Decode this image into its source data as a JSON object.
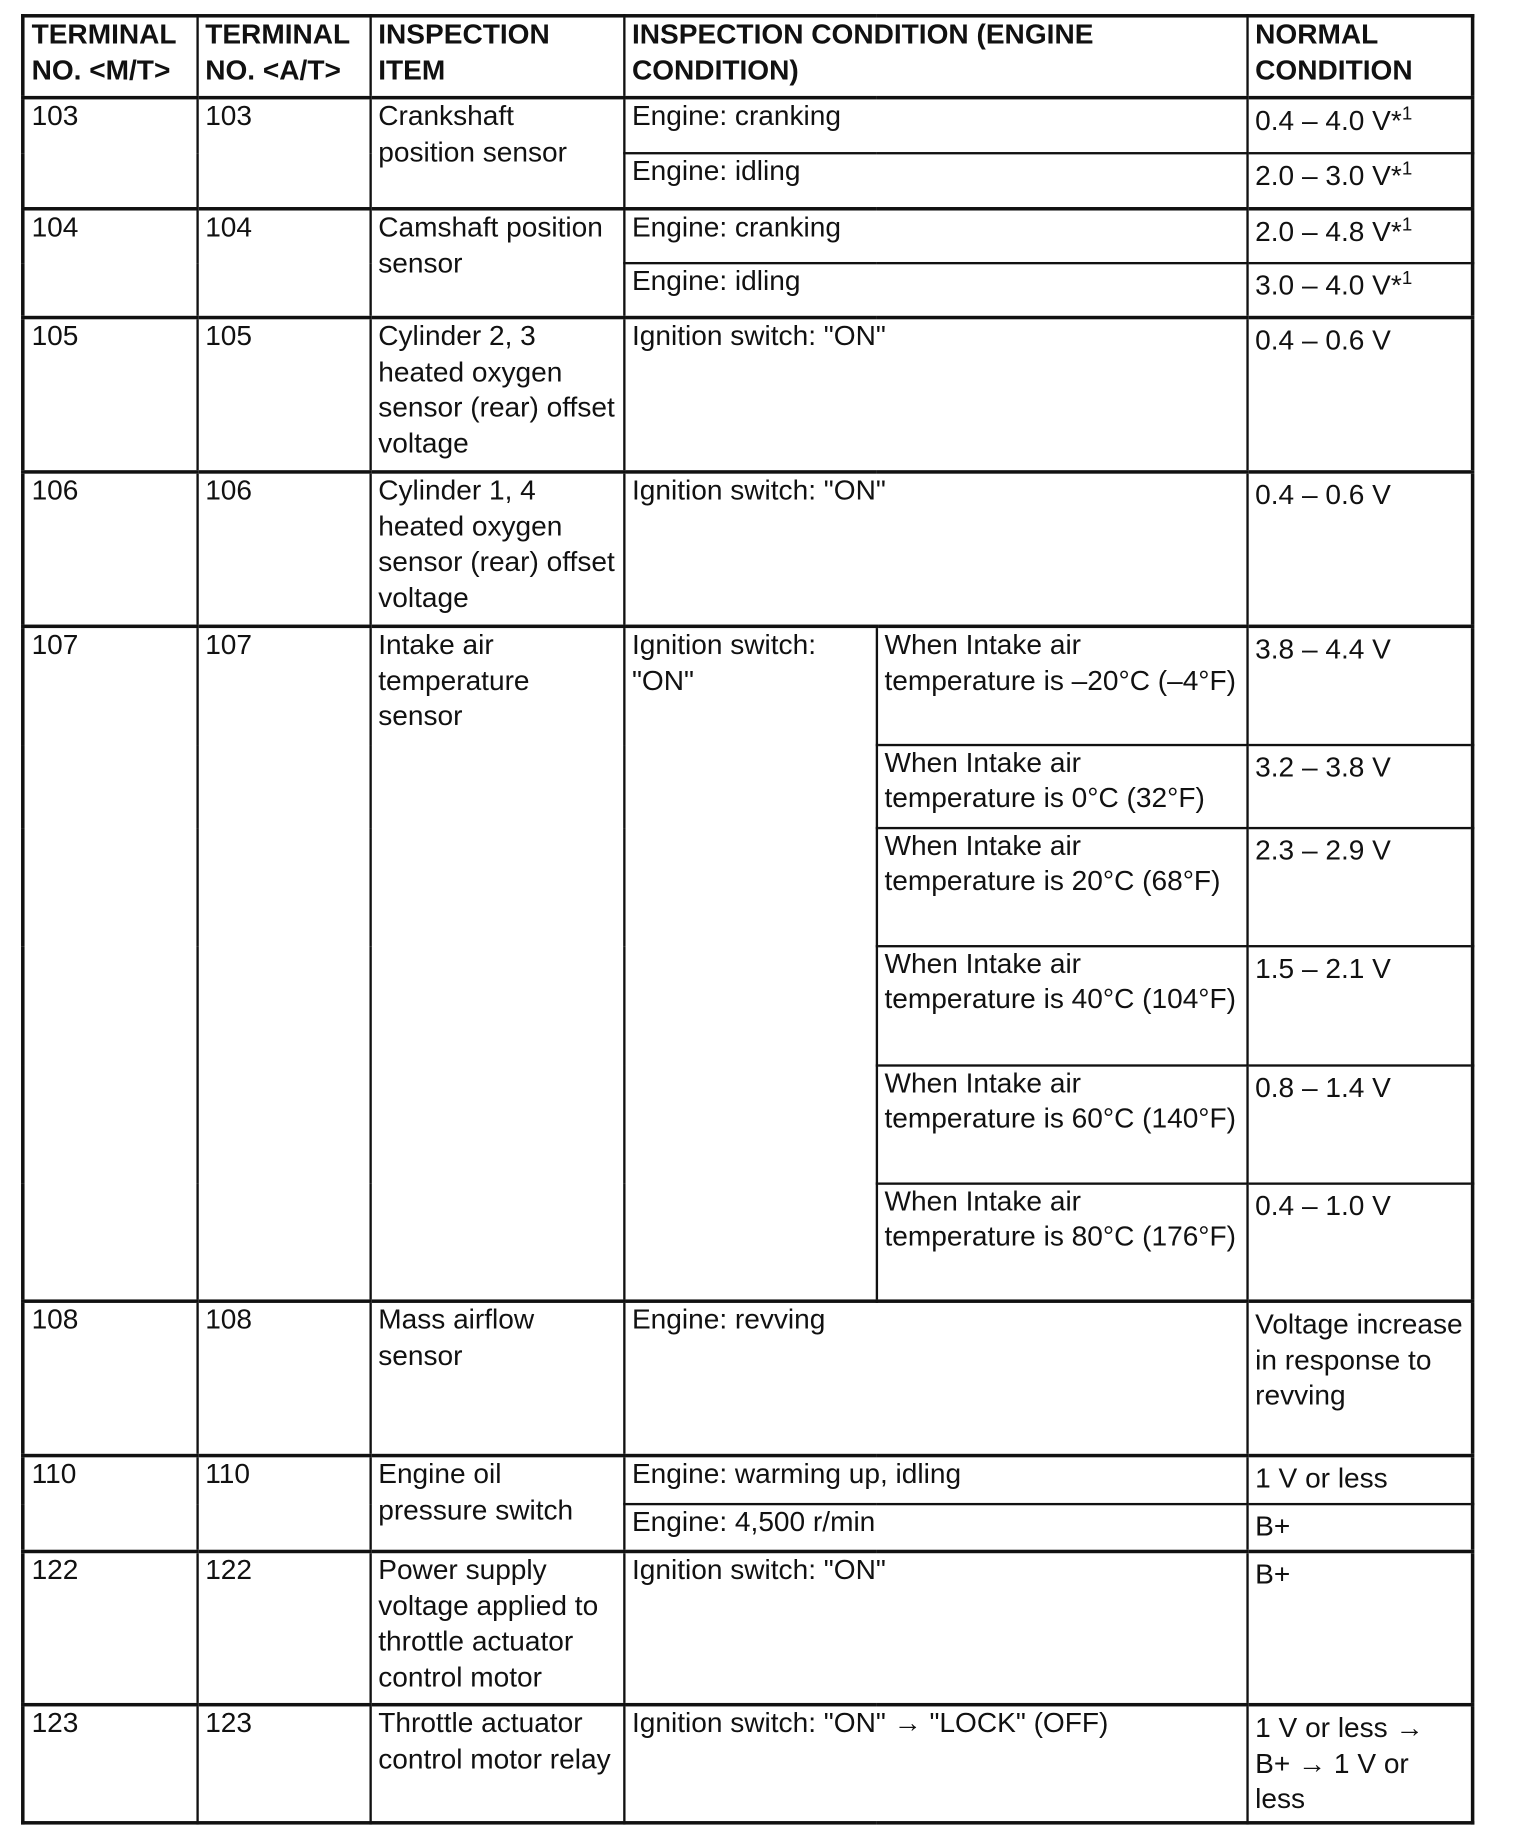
{
  "header": [
    "TERMINAL NO. <M/T>",
    "TERMINAL NO. <A/T>",
    "INSPECTION ITEM",
    "INSPECTION CONDITION (ENGINE CONDITION)",
    "NORMAL CONDITION"
  ],
  "rows": [
    {
      "mt": "103",
      "at": "103",
      "item": "Crankshaft position sensor",
      "conditions": [
        {
          "cond": "Engine: cranking",
          "normal": "0.4 – 4.0 V*",
          "sup": "1"
        },
        {
          "cond": "Engine: idling",
          "normal": "2.0 – 3.0 V*",
          "sup": "1"
        }
      ]
    },
    {
      "mt": "104",
      "at": "104",
      "item": "Camshaft position sensor",
      "conditions": [
        {
          "cond": "Engine: cranking",
          "normal": "2.0 – 4.8 V*",
          "sup": "1"
        },
        {
          "cond": "Engine: idling",
          "normal": "3.0 – 4.0 V*",
          "sup": "1"
        }
      ]
    },
    {
      "mt": "105",
      "at": "105",
      "item": "Cylinder 2, 3 heated oxygen sensor (rear) offset voltage",
      "conditions": [
        {
          "cond": "Ignition switch: \"ON\"",
          "normal": "0.4 – 0.6 V"
        }
      ]
    },
    {
      "mt": "106",
      "at": "106",
      "item": "Cylinder 1, 4 heated oxygen sensor (rear) offset voltage",
      "conditions": [
        {
          "cond": "Ignition switch: \"ON\"",
          "normal": "0.4 – 0.6 V"
        }
      ]
    },
    {
      "mt": "107",
      "at": "107",
      "item": "Intake air temperature sensor",
      "cond": "Ignition switch: \"ON\"",
      "sub": [
        {
          "cond": "When Intake air temperature is –20°C (–4°F)",
          "normal": "3.8 – 4.4 V"
        },
        {
          "cond": "When Intake air temperature is 0°C (32°F)",
          "normal": "3.2 – 3.8 V"
        },
        {
          "cond": "When Intake air temperature is 20°C (68°F)",
          "normal": "2.3 – 2.9 V"
        },
        {
          "cond": "When Intake air temperature is 40°C (104°F)",
          "normal": "1.5 – 2.1 V"
        },
        {
          "cond": "When Intake air temperature is 60°C (140°F)",
          "normal": "0.8 – 1.4 V"
        },
        {
          "cond": "When Intake air temperature is 80°C (176°F)",
          "normal": "0.4 – 1.0 V"
        }
      ]
    },
    {
      "mt": "108",
      "at": "108",
      "item": "Mass airflow sensor",
      "conditions": [
        {
          "cond": "Engine: revving",
          "normal": "Voltage increase in response to revving"
        }
      ]
    },
    {
      "mt": "110",
      "at": "110",
      "item": "Engine oil pressure switch",
      "conditions": [
        {
          "cond": "Engine: warming up, idling",
          "normal": "1 V or less"
        },
        {
          "cond": "Engine: 4,500 r/min",
          "normal": "B+"
        }
      ]
    },
    {
      "mt": "122",
      "at": "122",
      "item": "Power supply voltage applied to throttle actuator control motor",
      "conditions": [
        {
          "cond": "Ignition switch: \"ON\"",
          "normal": "B+"
        }
      ]
    },
    {
      "mt": "123",
      "at": "123",
      "item": "Throttle actuator control motor relay",
      "conditions": [
        {
          "cond": "Ignition switch: \"ON\" → \"LOCK\" (OFF)",
          "normal": "1 V or less → B+ → 1 V or less"
        }
      ]
    }
  ]
}
